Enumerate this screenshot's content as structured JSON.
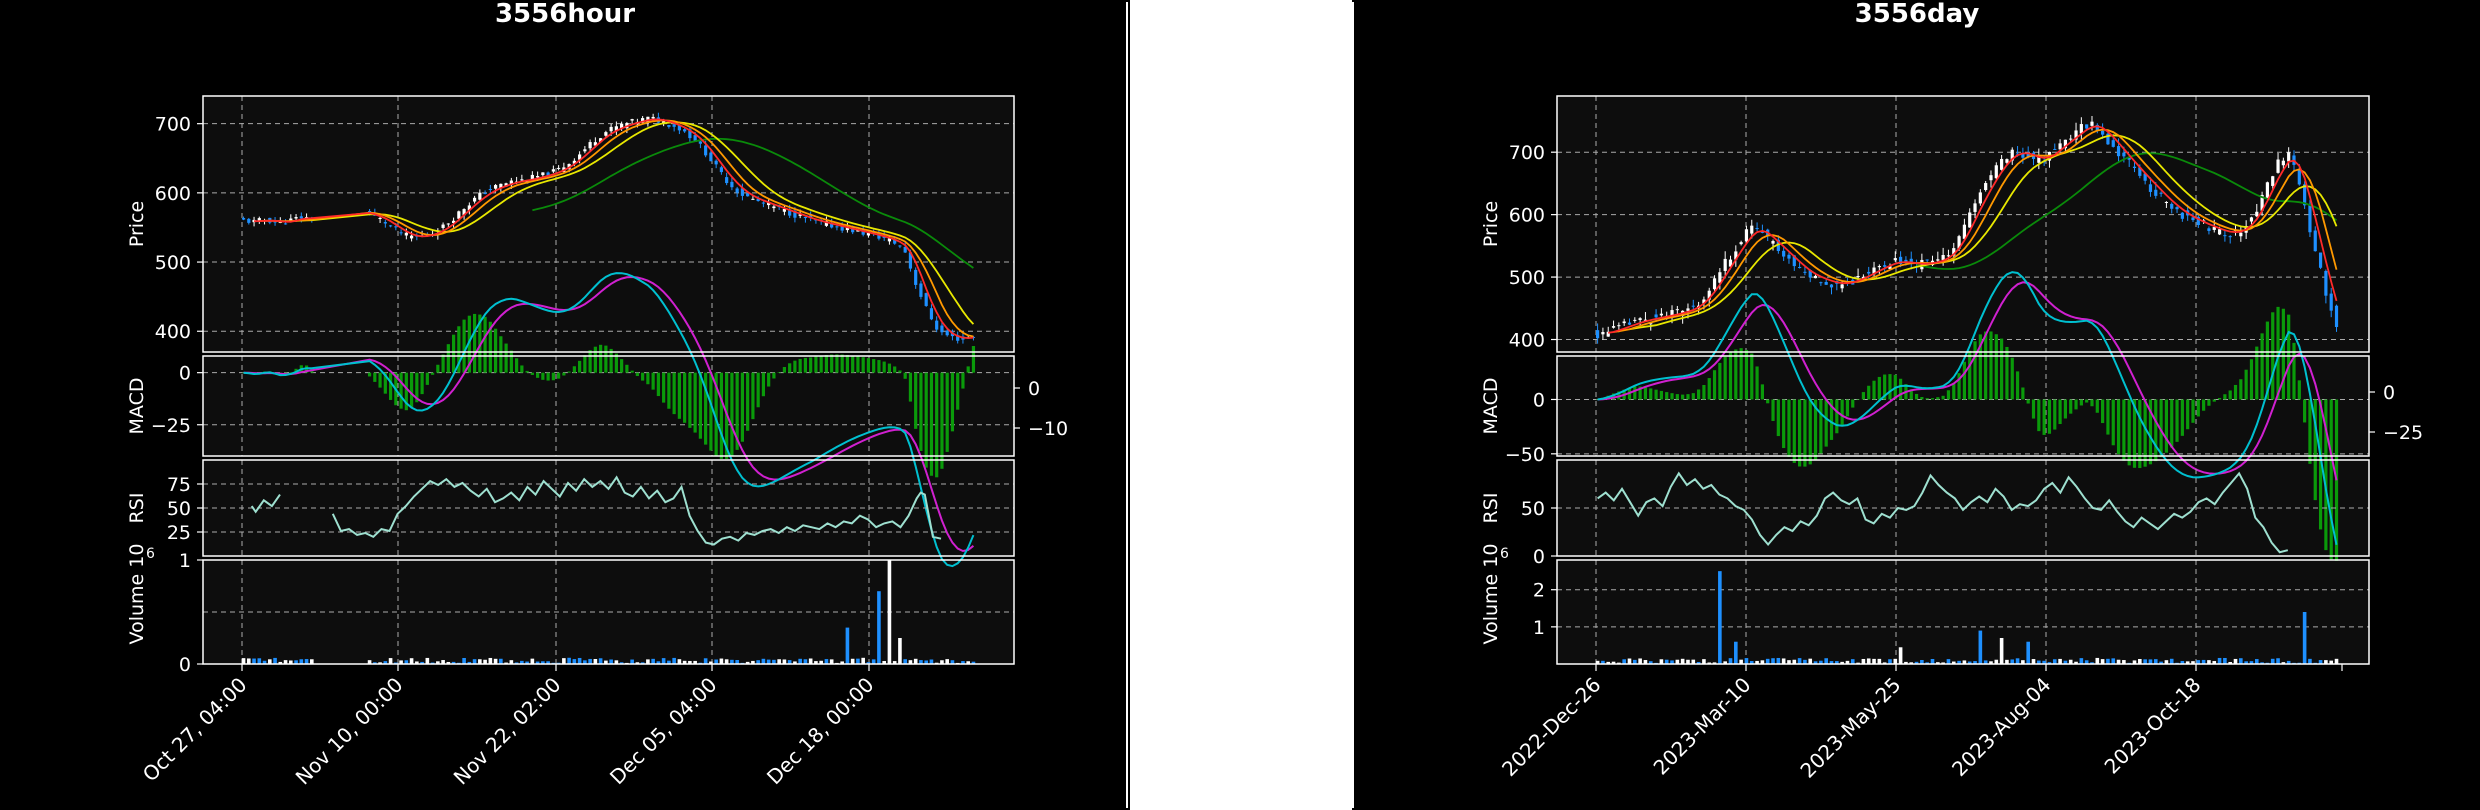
{
  "colors": {
    "background": "#000000",
    "plot_bg": "#0d0d0d",
    "grid": "#aaaaaa",
    "up_candle": "#ffffff",
    "down_candle": "#1e90ff",
    "ma_red": "#ff2a2a",
    "ma_orange": "#ff9900",
    "ma_yellow": "#e8e800",
    "ma_green": "#0a8a0a",
    "macd_line": "#00c0d0",
    "signal_line": "#d020d0",
    "macd_hist": "#0a9a0a",
    "rsi_line": "#9ee0d0"
  },
  "chart_data": [
    {
      "type": "candlestick",
      "title": "3556hour",
      "x_tick_labels": [
        "Oct 27, 04:00",
        "Nov 10, 00:00",
        "Nov 22, 02:00",
        "Dec 05, 04:00",
        "Dec 18, 00:00"
      ],
      "price": {
        "ylabel": "Price",
        "ylim": [
          370,
          740
        ],
        "yticks": [
          400,
          500,
          600,
          700
        ],
        "tick_labels": [
          "400",
          "500",
          "600",
          "700"
        ],
        "close": [
          560,
          558,
          562,
          556,
          560,
          565,
          562,
          566,
          570,
          574,
          572,
          568,
          560,
          548,
          538,
          536,
          540,
          548,
          562,
          578,
          592,
          604,
          610,
          616,
          618,
          622,
          626,
          632,
          642,
          656,
          672,
          686,
          694,
          700,
          704,
          708,
          704,
          698,
          690,
          676,
          656,
          632,
          612,
          598,
          590,
          584,
          578,
          572,
          566,
          560,
          556,
          552,
          548,
          544,
          540,
          536,
          530,
          520,
          470,
          430,
          400,
          392,
          388,
          394
        ]
      },
      "macd": {
        "ylabel": "MACD",
        "ylim": [
          -40,
          8
        ],
        "left_ticks": [
          0,
          -25
        ],
        "right_tick_labels": [
          "0",
          "−10"
        ]
      },
      "rsi": {
        "ylabel": "RSI",
        "ylim": [
          0,
          100
        ],
        "ticks": [
          25,
          50,
          75
        ],
        "segments": [
          [
            [
              0.06,
              52
            ],
            [
              0.065,
              46
            ],
            [
              0.075,
              58
            ],
            [
              0.085,
              52
            ],
            [
              0.095,
              64
            ]
          ],
          [
            [
              0.16,
              44
            ],
            [
              0.17,
              26
            ],
            [
              0.18,
              28
            ],
            [
              0.19,
              22
            ],
            [
              0.2,
              24
            ],
            [
              0.21,
              20
            ],
            [
              0.22,
              28
            ],
            [
              0.23,
              26
            ],
            [
              0.24,
              44
            ],
            [
              0.25,
              52
            ],
            [
              0.26,
              62
            ],
            [
              0.27,
              70
            ],
            [
              0.28,
              78
            ],
            [
              0.29,
              74
            ],
            [
              0.3,
              80
            ],
            [
              0.31,
              72
            ],
            [
              0.32,
              76
            ],
            [
              0.33,
              68
            ],
            [
              0.34,
              62
            ],
            [
              0.35,
              70
            ],
            [
              0.36,
              56
            ],
            [
              0.37,
              60
            ],
            [
              0.38,
              66
            ],
            [
              0.39,
              58
            ],
            [
              0.4,
              72
            ],
            [
              0.41,
              64
            ],
            [
              0.42,
              78
            ],
            [
              0.43,
              70
            ],
            [
              0.44,
              62
            ],
            [
              0.45,
              76
            ],
            [
              0.46,
              68
            ],
            [
              0.47,
              80
            ],
            [
              0.48,
              72
            ],
            [
              0.49,
              78
            ],
            [
              0.5,
              70
            ],
            [
              0.51,
              82
            ],
            [
              0.52,
              66
            ],
            [
              0.53,
              62
            ],
            [
              0.54,
              72
            ],
            [
              0.55,
              60
            ],
            [
              0.56,
              68
            ],
            [
              0.57,
              56
            ],
            [
              0.58,
              60
            ],
            [
              0.59,
              72
            ],
            [
              0.6,
              42
            ],
            [
              0.61,
              26
            ],
            [
              0.62,
              14
            ],
            [
              0.63,
              12
            ],
            [
              0.64,
              18
            ],
            [
              0.65,
              20
            ],
            [
              0.66,
              16
            ],
            [
              0.67,
              24
            ],
            [
              0.68,
              22
            ],
            [
              0.69,
              26
            ],
            [
              0.7,
              28
            ],
            [
              0.71,
              24
            ],
            [
              0.72,
              30
            ],
            [
              0.73,
              26
            ],
            [
              0.74,
              32
            ],
            [
              0.75,
              30
            ],
            [
              0.76,
              28
            ],
            [
              0.77,
              34
            ],
            [
              0.78,
              30
            ],
            [
              0.79,
              36
            ],
            [
              0.8,
              34
            ],
            [
              0.81,
              42
            ],
            [
              0.82,
              38
            ],
            [
              0.83,
              30
            ],
            [
              0.84,
              34
            ],
            [
              0.85,
              36
            ],
            [
              0.86,
              30
            ],
            [
              0.87,
              42
            ],
            [
              0.88,
              60
            ],
            [
              0.885,
              66
            ],
            [
              0.89,
              64
            ],
            [
              0.9,
              20
            ],
            [
              0.91,
              18
            ]
          ]
        ]
      },
      "volume": {
        "ylabel": "Volume  10",
        "exponent": "6",
        "ylim": [
          0,
          1.0
        ],
        "ticks": [
          0,
          1
        ],
        "tick_labels": [
          "0",
          "1"
        ]
      }
    },
    {
      "type": "candlestick",
      "title": "3556day",
      "x_tick_labels": [
        "2022-Dec-26",
        "2023-Mar-10",
        "2023-May-25",
        "2023-Aug-04",
        "2023-Oct-18"
      ],
      "price": {
        "ylabel": "Price",
        "ylim": [
          380,
          790
        ],
        "yticks": [
          400,
          500,
          600,
          700
        ],
        "tick_labels": [
          "400",
          "500",
          "600",
          "700"
        ],
        "close": [
          408,
          414,
          420,
          428,
          432,
          436,
          440,
          444,
          452,
          470,
          500,
          530,
          560,
          582,
          566,
          548,
          530,
          512,
          500,
          494,
          488,
          492,
          500,
          510,
          520,
          526,
          522,
          520,
          524,
          530,
          552,
          590,
          630,
          662,
          690,
          702,
          696,
          686,
          700,
          716,
          730,
          746,
          738,
          716,
          694,
          672,
          652,
          632,
          614,
          600,
          590,
          582,
          574,
          570,
          576,
          600,
          640,
          680,
          700,
          640,
          560,
          480,
          420
        ]
      },
      "macd": {
        "ylabel": "MACD",
        "ylim": [
          -52,
          40
        ],
        "left_ticks": [
          0,
          -50
        ],
        "right_tick_labels": [
          "0",
          "−25"
        ]
      },
      "rsi": {
        "ylabel": "RSI",
        "ylim": [
          0,
          100
        ],
        "ticks": [
          0,
          50
        ],
        "segments": [
          [
            [
              0.05,
              60
            ],
            [
              0.06,
              66
            ],
            [
              0.07,
              58
            ],
            [
              0.08,
              70
            ],
            [
              0.09,
              56
            ],
            [
              0.1,
              42
            ],
            [
              0.11,
              56
            ],
            [
              0.12,
              60
            ],
            [
              0.13,
              52
            ],
            [
              0.14,
              72
            ],
            [
              0.15,
              86
            ],
            [
              0.16,
              74
            ],
            [
              0.17,
              80
            ],
            [
              0.18,
              70
            ],
            [
              0.19,
              74
            ],
            [
              0.2,
              64
            ],
            [
              0.21,
              60
            ],
            [
              0.22,
              52
            ],
            [
              0.23,
              48
            ],
            [
              0.24,
              38
            ],
            [
              0.25,
              22
            ],
            [
              0.26,
              12
            ],
            [
              0.27,
              22
            ],
            [
              0.28,
              30
            ],
            [
              0.29,
              26
            ],
            [
              0.3,
              36
            ],
            [
              0.31,
              32
            ],
            [
              0.32,
              42
            ],
            [
              0.33,
              60
            ],
            [
              0.34,
              66
            ],
            [
              0.35,
              58
            ],
            [
              0.36,
              54
            ],
            [
              0.37,
              60
            ],
            [
              0.38,
              38
            ],
            [
              0.39,
              34
            ],
            [
              0.4,
              44
            ],
            [
              0.41,
              40
            ],
            [
              0.42,
              50
            ],
            [
              0.43,
              48
            ],
            [
              0.44,
              52
            ],
            [
              0.45,
              66
            ],
            [
              0.46,
              84
            ],
            [
              0.47,
              74
            ],
            [
              0.48,
              66
            ],
            [
              0.49,
              60
            ],
            [
              0.5,
              48
            ],
            [
              0.51,
              56
            ],
            [
              0.52,
              62
            ],
            [
              0.53,
              56
            ],
            [
              0.54,
              70
            ],
            [
              0.55,
              62
            ],
            [
              0.56,
              48
            ],
            [
              0.57,
              54
            ],
            [
              0.58,
              52
            ],
            [
              0.59,
              58
            ],
            [
              0.6,
              70
            ],
            [
              0.61,
              76
            ],
            [
              0.62,
              66
            ],
            [
              0.63,
              82
            ],
            [
              0.64,
              72
            ],
            [
              0.65,
              60
            ],
            [
              0.66,
              50
            ],
            [
              0.67,
              48
            ],
            [
              0.68,
              58
            ],
            [
              0.69,
              46
            ],
            [
              0.7,
              36
            ],
            [
              0.71,
              30
            ],
            [
              0.72,
              40
            ],
            [
              0.73,
              34
            ],
            [
              0.74,
              28
            ],
            [
              0.75,
              36
            ],
            [
              0.76,
              44
            ],
            [
              0.77,
              40
            ],
            [
              0.78,
              46
            ],
            [
              0.79,
              56
            ],
            [
              0.8,
              60
            ],
            [
              0.81,
              54
            ],
            [
              0.82,
              66
            ],
            [
              0.83,
              76
            ],
            [
              0.84,
              86
            ],
            [
              0.85,
              70
            ],
            [
              0.86,
              40
            ],
            [
              0.87,
              30
            ],
            [
              0.88,
              14
            ],
            [
              0.89,
              4
            ],
            [
              0.9,
              6
            ]
          ]
        ]
      },
      "volume": {
        "ylabel": "Volume  10",
        "exponent": "6",
        "ylim": [
          0,
          2.8
        ],
        "ticks": [
          1,
          2
        ],
        "tick_labels": [
          "1",
          "2"
        ]
      }
    }
  ]
}
